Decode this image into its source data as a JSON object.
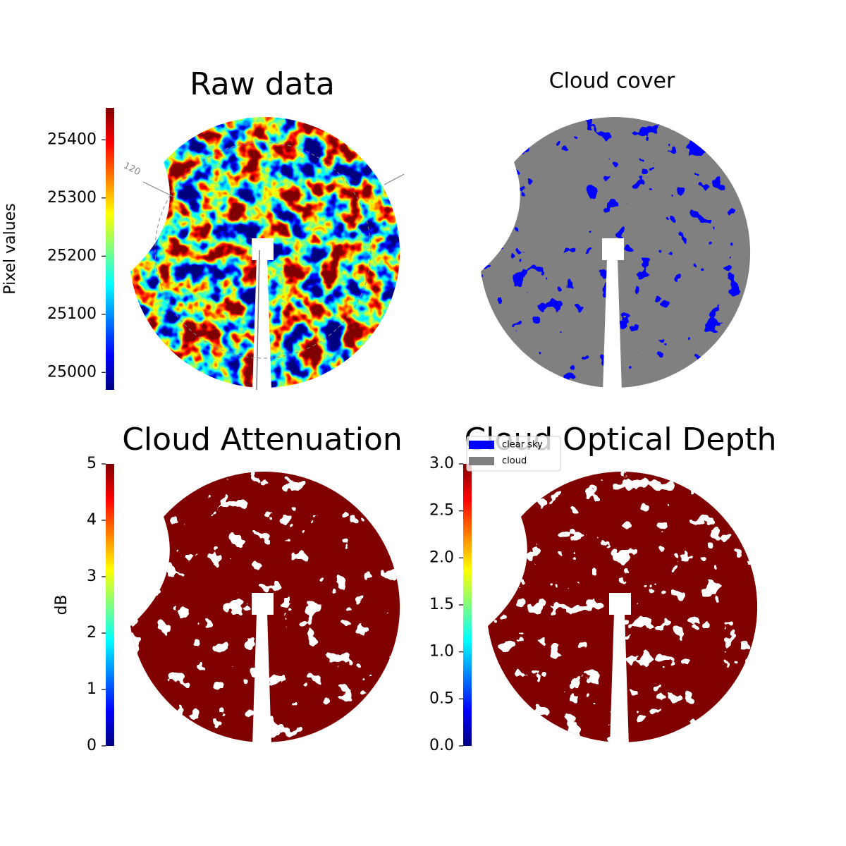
{
  "chart_data": [
    {
      "type": "heatmap",
      "title": "Raw data",
      "ylabel": "Pixel values",
      "colormap": "jet",
      "ylim": [
        24970,
        25455
      ],
      "yticks": [
        25000,
        25100,
        25200,
        25300,
        25400
      ],
      "annotation": "120"
    },
    {
      "type": "image",
      "title": "Cloud cover",
      "series": [
        {
          "name": "clear sky",
          "color": "#0000ff"
        },
        {
          "name": "cloud",
          "color": "#808080"
        }
      ]
    },
    {
      "type": "heatmap",
      "title": "Cloud Attenuation",
      "ylabel": "dB",
      "colormap": "jet",
      "ylim": [
        0,
        5
      ],
      "yticks": [
        0,
        1,
        2,
        3,
        4,
        5
      ]
    },
    {
      "type": "heatmap",
      "title": "Cloud Optical Depth",
      "colormap": "jet",
      "ylim": [
        0,
        3
      ],
      "yticks": [
        {
          "value": 0,
          "label": "0.0"
        },
        {
          "value": 0.5,
          "label": "0.5"
        },
        {
          "value": 1,
          "label": "1.0"
        },
        {
          "value": 1.5,
          "label": "1.5"
        },
        {
          "value": 2,
          "label": "2.0"
        },
        {
          "value": 2.5,
          "label": "2.5"
        },
        {
          "value": 3,
          "label": "3.0"
        }
      ]
    }
  ]
}
